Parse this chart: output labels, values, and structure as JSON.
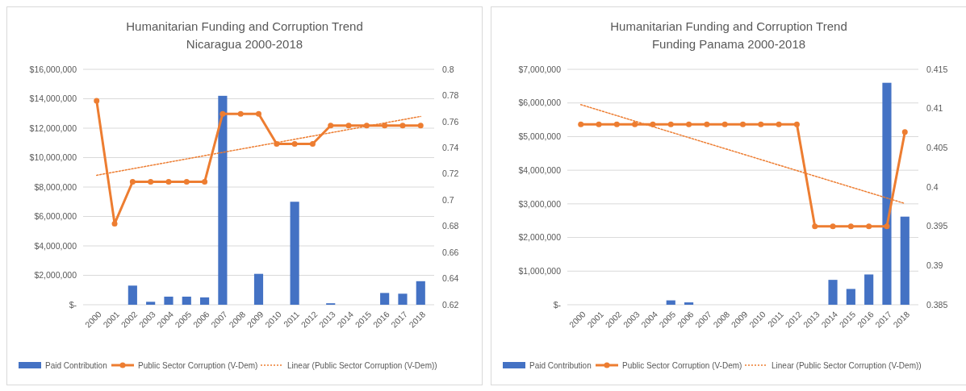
{
  "chart_data": [
    {
      "type": "bar",
      "title": "Humanitarian Funding and Corruption Trend",
      "subtitle": "Nicaragua 2000-2018",
      "categories": [
        "2000",
        "2001",
        "2002",
        "2003",
        "2004",
        "2005",
        "2006",
        "2007",
        "2008",
        "2009",
        "2010",
        "2011",
        "2012",
        "2013",
        "2014",
        "2015",
        "2016",
        "2017",
        "2018"
      ],
      "series": [
        {
          "name": "Paid Contribution",
          "color": "#4472c4",
          "values": [
            0,
            0,
            1300000,
            200000,
            550000,
            550000,
            500000,
            14200000,
            0,
            2100000,
            0,
            7000000,
            0,
            100000,
            0,
            0,
            800000,
            750000,
            1600000
          ]
        },
        {
          "name": "Public Sector Corruption (V-Dem)",
          "type": "line",
          "axis": "y2",
          "color": "#ed7d31",
          "marker": "circle",
          "line_style": "solid",
          "values": [
            0.776,
            0.682,
            0.714,
            0.714,
            0.714,
            0.714,
            0.714,
            0.766,
            0.766,
            0.766,
            0.743,
            0.743,
            0.743,
            0.757,
            0.757,
            0.757,
            0.757,
            0.757,
            0.757
          ]
        },
        {
          "name": "Linear (Public Sector Corruption (V-Dem))",
          "type": "line",
          "axis": "y2",
          "color": "#ed7d31",
          "marker": "none",
          "line_style": "dotted",
          "values": [
            0.719,
            0.7215,
            0.724,
            0.7265,
            0.729,
            0.7315,
            0.734,
            0.7365,
            0.739,
            0.7415,
            0.744,
            0.7465,
            0.749,
            0.7515,
            0.754,
            0.7565,
            0.759,
            0.7615,
            0.764
          ]
        }
      ],
      "ylim": [
        0,
        16000000
      ],
      "yticks": [
        {
          "value": 0,
          "label": "$-"
        },
        {
          "value": 2000000,
          "label": "$2,000,000"
        },
        {
          "value": 4000000,
          "label": "$4,000,000"
        },
        {
          "value": 6000000,
          "label": "$6,000,000"
        },
        {
          "value": 8000000,
          "label": "$8,000,000"
        },
        {
          "value": 10000000,
          "label": "$10,000,000"
        },
        {
          "value": 12000000,
          "label": "$12,000,000"
        },
        {
          "value": 14000000,
          "label": "$14,000,000"
        },
        {
          "value": 16000000,
          "label": "$16,000,000"
        }
      ],
      "y2lim": [
        0.62,
        0.8
      ],
      "y2ticks": [
        0.62,
        0.64,
        0.66,
        0.68,
        0.7,
        0.72,
        0.74,
        0.76,
        0.78,
        0.8
      ],
      "grid": "y",
      "legend": "bottom"
    },
    {
      "type": "bar",
      "title": "Humanitarian Funding and Corruption Trend",
      "subtitle": "Funding Panama 2000-2018",
      "categories": [
        "2000",
        "2001",
        "2002",
        "2003",
        "2004",
        "2005",
        "2006",
        "2007",
        "2008",
        "2009",
        "2010",
        "2011",
        "2012",
        "2013",
        "2014",
        "2015",
        "2016",
        "2017",
        "2018"
      ],
      "series": [
        {
          "name": "Paid Contribution",
          "color": "#4472c4",
          "values": [
            0,
            0,
            0,
            0,
            0,
            130000,
            70000,
            0,
            0,
            0,
            0,
            0,
            0,
            0,
            740000,
            470000,
            900000,
            6600000,
            2620000
          ]
        },
        {
          "name": "Public Sector Corruption (V-Dem)",
          "type": "line",
          "axis": "y2",
          "color": "#ed7d31",
          "marker": "circle",
          "line_style": "solid",
          "values": [
            0.408,
            0.408,
            0.408,
            0.408,
            0.408,
            0.408,
            0.408,
            0.408,
            0.408,
            0.408,
            0.408,
            0.408,
            0.408,
            0.395,
            0.395,
            0.395,
            0.395,
            0.395,
            0.407
          ]
        },
        {
          "name": "Linear (Public Sector Corruption (V-Dem))",
          "type": "line",
          "axis": "y2",
          "color": "#ed7d31",
          "marker": "none",
          "line_style": "dotted",
          "values": [
            0.4105,
            0.4098,
            0.4091,
            0.4084,
            0.4077,
            0.407,
            0.4063,
            0.4056,
            0.4049,
            0.4042,
            0.4035,
            0.4028,
            0.4021,
            0.4014,
            0.4007,
            0.4,
            0.3993,
            0.3986,
            0.3979
          ]
        }
      ],
      "ylim": [
        0,
        7000000
      ],
      "yticks": [
        {
          "value": 0,
          "label": "$-"
        },
        {
          "value": 1000000,
          "label": "$1,000,000"
        },
        {
          "value": 2000000,
          "label": "$2,000,000"
        },
        {
          "value": 3000000,
          "label": "$3,000,000"
        },
        {
          "value": 4000000,
          "label": "$4,000,000"
        },
        {
          "value": 5000000,
          "label": "$5,000,000"
        },
        {
          "value": 6000000,
          "label": "$6,000,000"
        },
        {
          "value": 7000000,
          "label": "$7,000,000"
        }
      ],
      "y2lim": [
        0.385,
        0.415
      ],
      "y2ticks": [
        0.385,
        0.39,
        0.395,
        0.4,
        0.405,
        0.41,
        0.415
      ],
      "grid": "y",
      "legend": "bottom"
    }
  ]
}
